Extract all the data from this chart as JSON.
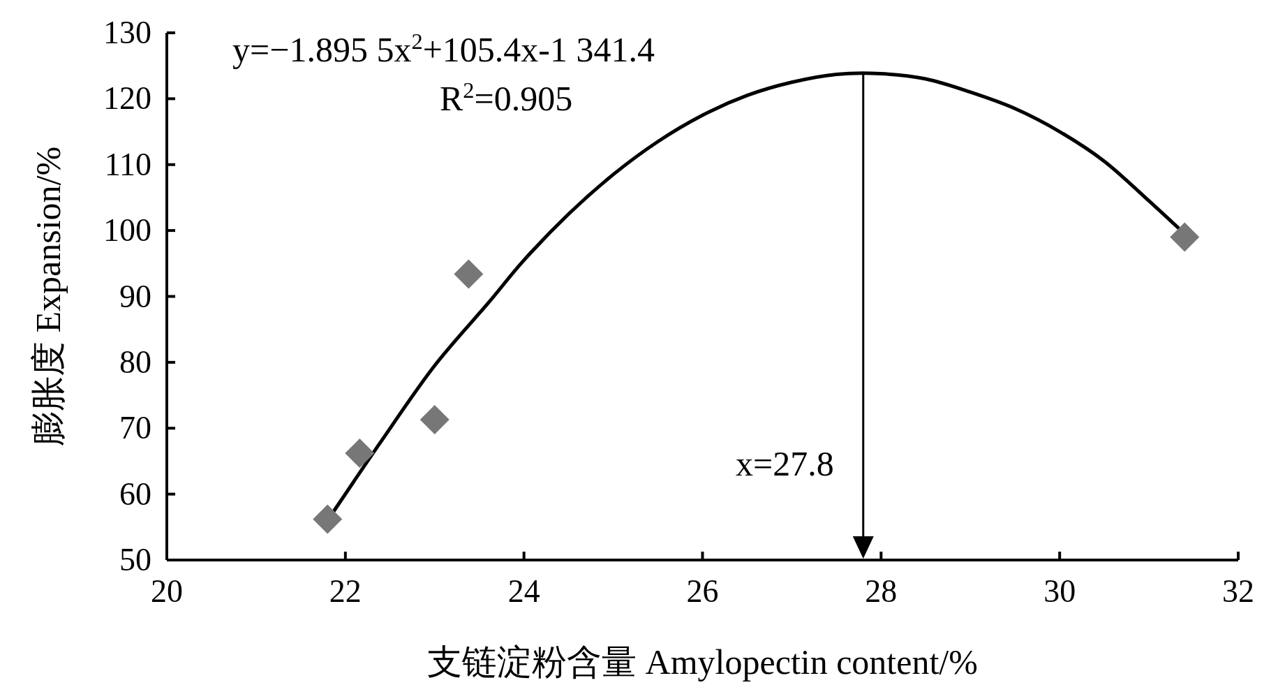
{
  "chart_data": {
    "type": "scatter",
    "xlabel": "支链淀粉含量  Amylopectin content/%",
    "ylabel": "膨胀度  Expansion/%",
    "xlim": [
      20,
      32
    ],
    "xticks": [
      20,
      22,
      24,
      26,
      28,
      30,
      32
    ],
    "ylim": [
      50,
      130
    ],
    "yticks": [
      50,
      60,
      70,
      80,
      90,
      100,
      110,
      120,
      130
    ],
    "grid": false,
    "marker": "diamond",
    "series": [
      {
        "type": "scatter",
        "color": "#777777",
        "x": [
          21.8,
          22.16,
          23.0,
          23.38,
          31.4
        ],
        "values": [
          56.2,
          66.2,
          71.3,
          93.4,
          99.0
        ]
      },
      {
        "type": "line",
        "color": "#000000",
        "marker": "none",
        "x": [
          21.8,
          22.4,
          23.0,
          23.6,
          24.0,
          24.5,
          25.0,
          25.5,
          26.0,
          26.5,
          27.0,
          27.5,
          28.0,
          28.5,
          29.0,
          29.5,
          30.0,
          30.5,
          31.0,
          31.4
        ],
        "values": [
          56,
          68,
          79.5,
          89,
          95.5,
          102.5,
          108.5,
          113.5,
          117.5,
          120.5,
          122.5,
          123.7,
          123.8,
          123,
          121,
          118.5,
          115,
          110.5,
          104.5,
          99.5
        ]
      }
    ],
    "ref_lines": [
      {
        "axis": "x",
        "value": 27.8,
        "label": "x=27.8",
        "color": "#000000",
        "line_style": "solid"
      }
    ],
    "annotations": [
      "y=−1.895 5x$^{2}$+105.4x-1 341.4",
      "R$^{2}$=0.905"
    ]
  }
}
